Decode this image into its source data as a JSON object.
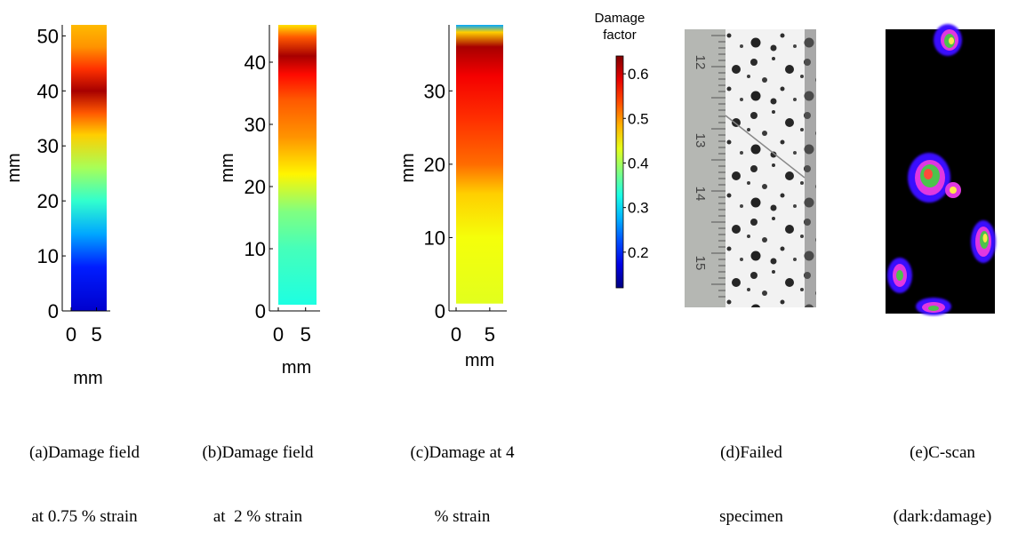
{
  "chart_data": [
    {
      "type": "heatmap",
      "panel": "a",
      "xlabel": "mm",
      "ylabel": "mm",
      "xticks": [
        0,
        5
      ],
      "yticks": [
        0,
        10,
        20,
        30,
        40,
        50
      ],
      "xlim": [
        0,
        7
      ],
      "ylim": [
        0,
        52
      ],
      "caption": [
        "(a)Damage field",
        "at 0.75 % strain"
      ],
      "profile": [
        {
          "y": 0,
          "value": 0.16
        },
        {
          "y": 8,
          "value": 0.2
        },
        {
          "y": 14,
          "value": 0.27
        },
        {
          "y": 20,
          "value": 0.34
        },
        {
          "y": 26,
          "value": 0.4
        },
        {
          "y": 32,
          "value": 0.47
        },
        {
          "y": 36,
          "value": 0.53
        },
        {
          "y": 40,
          "value": 0.62
        },
        {
          "y": 44,
          "value": 0.55
        },
        {
          "y": 48,
          "value": 0.5
        },
        {
          "y": 52,
          "value": 0.48
        }
      ]
    },
    {
      "type": "heatmap",
      "panel": "b",
      "xlabel": "mm",
      "ylabel": "mm",
      "xticks": [
        0,
        5
      ],
      "yticks": [
        0,
        10,
        20,
        30,
        40
      ],
      "xlim": [
        0,
        7
      ],
      "ylim": [
        0,
        46
      ],
      "caption": [
        "(b)Damage field",
        "at  2 % strain"
      ],
      "profile": [
        {
          "y": 1,
          "value": 0.33
        },
        {
          "y": 10,
          "value": 0.35
        },
        {
          "y": 16,
          "value": 0.38
        },
        {
          "y": 22,
          "value": 0.45
        },
        {
          "y": 28,
          "value": 0.5
        },
        {
          "y": 34,
          "value": 0.53
        },
        {
          "y": 38,
          "value": 0.57
        },
        {
          "y": 41,
          "value": 0.62
        },
        {
          "y": 44,
          "value": 0.53
        },
        {
          "y": 46,
          "value": 0.46
        }
      ]
    },
    {
      "type": "heatmap",
      "panel": "c",
      "xlabel": "mm",
      "ylabel": "mm",
      "xticks": [
        0,
        5
      ],
      "yticks": [
        0,
        10,
        20,
        30
      ],
      "xlim": [
        0,
        7
      ],
      "ylim": [
        0,
        39
      ],
      "caption": [
        "(c)Damage at 4",
        "% strain"
      ],
      "profile": [
        {
          "y": 1,
          "value": 0.43
        },
        {
          "y": 10,
          "value": 0.44
        },
        {
          "y": 16,
          "value": 0.47
        },
        {
          "y": 20,
          "value": 0.52
        },
        {
          "y": 26,
          "value": 0.55
        },
        {
          "y": 32,
          "value": 0.58
        },
        {
          "y": 36,
          "value": 0.62
        },
        {
          "y": 38,
          "value": 0.47
        },
        {
          "y": 39,
          "value": 0.27
        }
      ]
    },
    {
      "type": "colorbar",
      "title": [
        "Damage",
        "factor"
      ],
      "ticks": [
        0.2,
        0.3,
        0.4,
        0.5,
        0.6
      ],
      "range": [
        0.12,
        0.64
      ]
    }
  ],
  "photo_d": {
    "ruler_labels": [
      "12",
      "13",
      "14",
      "15"
    ],
    "caption": [
      "(d)Failed",
      "specimen"
    ]
  },
  "photo_e": {
    "caption": [
      "(e)C-scan",
      "(dark:damage)"
    ]
  }
}
